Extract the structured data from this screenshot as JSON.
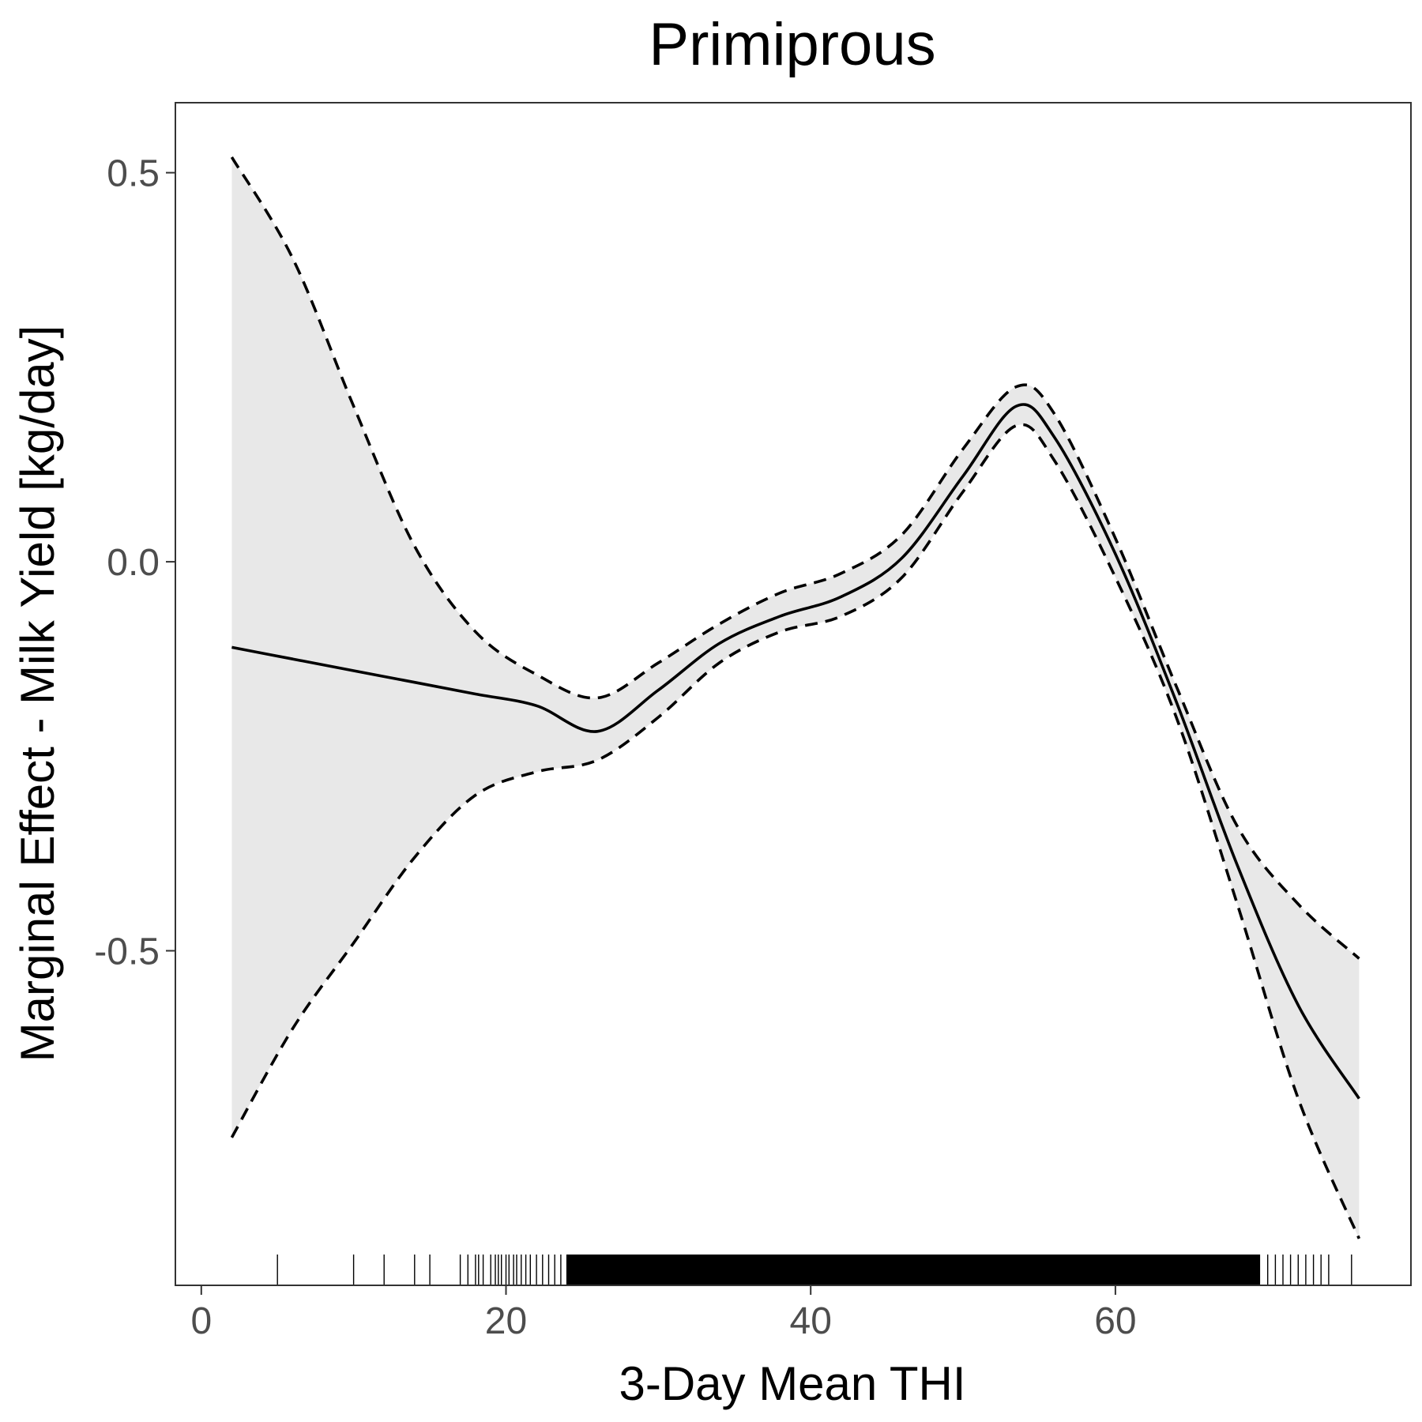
{
  "chart_data": {
    "type": "line",
    "title": "Primiprous",
    "xlabel": "3-Day Mean THI",
    "ylabel": "Marginal Effect - Milk Yield [kg/day]",
    "xlim": [
      -1.7,
      79.4
    ],
    "ylim": [
      -0.93,
      0.59
    ],
    "x_ticks": [
      0,
      20,
      40,
      60
    ],
    "x_tick_labels": [
      "0",
      "20",
      "40",
      "60"
    ],
    "y_ticks": [
      -0.5,
      0.0,
      0.5
    ],
    "y_tick_labels": [
      "-0.5",
      "0.0",
      "0.5"
    ],
    "grid": false,
    "legend": "none",
    "colors": {
      "line": "#000000",
      "ribbon": "#e8e8e8",
      "panel_border": "#333333",
      "tick_label": "#4d4d4d"
    },
    "series": [
      {
        "role": "estimate",
        "style": "solid",
        "x": [
          2,
          6,
          10,
          14,
          18,
          22,
          26,
          30,
          34,
          38,
          42,
          46,
          50,
          53.5,
          56,
          60,
          64,
          68,
          72,
          76
        ],
        "y": [
          -0.11,
          -0.125,
          -0.14,
          -0.155,
          -0.17,
          -0.185,
          -0.218,
          -0.165,
          -0.105,
          -0.07,
          -0.045,
          0.005,
          0.11,
          0.2,
          0.16,
          0.01,
          -0.18,
          -0.39,
          -0.57,
          -0.69
        ]
      },
      {
        "role": "upper-bound",
        "style": "dashed",
        "x": [
          2,
          6,
          10,
          14,
          18,
          22,
          26,
          30,
          34,
          38,
          42,
          46,
          50,
          53.5,
          56,
          60,
          64,
          68,
          72,
          76
        ],
        "y": [
          0.52,
          0.39,
          0.2,
          0.02,
          -0.09,
          -0.145,
          -0.175,
          -0.13,
          -0.08,
          -0.04,
          -0.015,
          0.035,
          0.145,
          0.225,
          0.19,
          0.03,
          -0.16,
          -0.34,
          -0.44,
          -0.51
        ]
      },
      {
        "role": "lower-bound",
        "style": "dashed",
        "x": [
          2,
          6,
          10,
          14,
          18,
          22,
          26,
          30,
          34,
          38,
          42,
          46,
          50,
          53.5,
          56,
          60,
          64,
          68,
          72,
          76
        ],
        "y": [
          -0.74,
          -0.6,
          -0.49,
          -0.38,
          -0.3,
          -0.27,
          -0.255,
          -0.2,
          -0.13,
          -0.09,
          -0.07,
          -0.02,
          0.09,
          0.175,
          0.13,
          -0.02,
          -0.2,
          -0.44,
          -0.69,
          -0.87
        ]
      }
    ],
    "rug_x": [
      5,
      10,
      12,
      14,
      15,
      17,
      17.5,
      18,
      18.2,
      18.5,
      19,
      19.3,
      19.5,
      19.7,
      20,
      20.2,
      20.5,
      20.7,
      21,
      21.3,
      21.6,
      22,
      22.4,
      22.8,
      23.2,
      23.6,
      24,
      25,
      26,
      27,
      28,
      29,
      30,
      31,
      32,
      33,
      34,
      35,
      36,
      37,
      38,
      39,
      40,
      41,
      42,
      43,
      44,
      45,
      46,
      47,
      48,
      49,
      50,
      51,
      52,
      53,
      54,
      55,
      56,
      57,
      58,
      59,
      60,
      61,
      62,
      63,
      64,
      65,
      66,
      67,
      68,
      69,
      70,
      70.5,
      71,
      71.5,
      72,
      72.5,
      73,
      73.5,
      74,
      75.5
    ]
  }
}
